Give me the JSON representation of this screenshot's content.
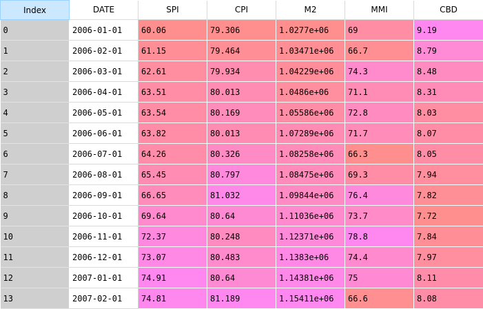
{
  "columns": [
    "Index",
    "DATE",
    "SPI",
    "CPI",
    "M2",
    "MMI",
    "CBD"
  ],
  "colors": {
    "index_header_bg": "#cce8ff",
    "index_column_bg": "#cfcfcf",
    "heat_low": "#ff8f8f",
    "heat_high": "#ff88f0"
  },
  "rows": [
    {
      "index": "0",
      "date": "2006-01-01",
      "spi": "60.06",
      "cpi": "79.306",
      "m2": "1.0277e+06",
      "mmi": "69",
      "cbd": "9.19"
    },
    {
      "index": "1",
      "date": "2006-02-01",
      "spi": "61.15",
      "cpi": "79.464",
      "m2": "1.03471e+06",
      "mmi": "66.7",
      "cbd": "8.79"
    },
    {
      "index": "2",
      "date": "2006-03-01",
      "spi": "62.61",
      "cpi": "79.934",
      "m2": "1.04229e+06",
      "mmi": "74.3",
      "cbd": "8.48"
    },
    {
      "index": "3",
      "date": "2006-04-01",
      "spi": "63.51",
      "cpi": "80.013",
      "m2": "1.0486e+06",
      "mmi": "71.1",
      "cbd": "8.31"
    },
    {
      "index": "4",
      "date": "2006-05-01",
      "spi": "63.54",
      "cpi": "80.169",
      "m2": "1.05586e+06",
      "mmi": "72.8",
      "cbd": "8.03"
    },
    {
      "index": "5",
      "date": "2006-06-01",
      "spi": "63.82",
      "cpi": "80.013",
      "m2": "1.07289e+06",
      "mmi": "71.7",
      "cbd": "8.07"
    },
    {
      "index": "6",
      "date": "2006-07-01",
      "spi": "64.26",
      "cpi": "80.326",
      "m2": "1.08258e+06",
      "mmi": "66.3",
      "cbd": "8.05"
    },
    {
      "index": "7",
      "date": "2006-08-01",
      "spi": "65.45",
      "cpi": "80.797",
      "m2": "1.08475e+06",
      "mmi": "69.3",
      "cbd": "7.94"
    },
    {
      "index": "8",
      "date": "2006-09-01",
      "spi": "66.65",
      "cpi": "81.032",
      "m2": "1.09844e+06",
      "mmi": "76.4",
      "cbd": "7.82"
    },
    {
      "index": "9",
      "date": "2006-10-01",
      "spi": "69.64",
      "cpi": "80.64",
      "m2": "1.11036e+06",
      "mmi": "73.7",
      "cbd": "7.72"
    },
    {
      "index": "10",
      "date": "2006-11-01",
      "spi": "72.37",
      "cpi": "80.248",
      "m2": "1.12371e+06",
      "mmi": "78.8",
      "cbd": "7.84"
    },
    {
      "index": "11",
      "date": "2006-12-01",
      "spi": "73.07",
      "cpi": "80.483",
      "m2": "1.1383e+06",
      "mmi": "74.4",
      "cbd": "7.97"
    },
    {
      "index": "12",
      "date": "2007-01-01",
      "spi": "74.91",
      "cpi": "80.64",
      "m2": "1.14381e+06",
      "mmi": "75",
      "cbd": "8.11"
    },
    {
      "index": "13",
      "date": "2007-02-01",
      "spi": "74.81",
      "cpi": "81.189",
      "m2": "1.15411e+06",
      "mmi": "66.6",
      "cbd": "8.08"
    }
  ]
}
